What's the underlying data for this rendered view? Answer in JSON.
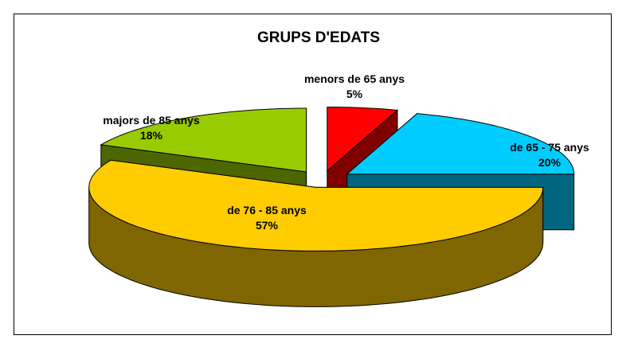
{
  "chart_data": {
    "type": "pie3d",
    "title": "GRUPS D'EDATS",
    "categories": [
      "menors de 65 anys",
      "de 65 - 75 anys",
      "de 76 - 85 anys",
      "majors de 85 anys"
    ],
    "values": [
      5,
      20,
      57,
      18
    ],
    "value_labels": [
      "5%",
      "20%",
      "57%",
      "18%"
    ],
    "colors": [
      "#ff0000",
      "#00ccff",
      "#ffcc00",
      "#99cc00"
    ],
    "side_colors": [
      "#800000",
      "#006680",
      "#806600",
      "#4d6600"
    ]
  }
}
